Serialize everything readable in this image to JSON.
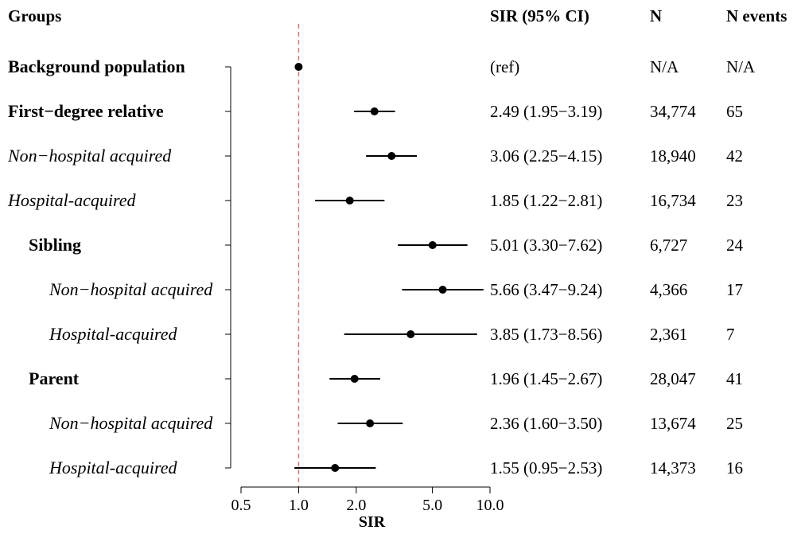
{
  "chart_data": {
    "type": "forest",
    "headers": {
      "groups": "Groups",
      "sir": "SIR (95% CI)",
      "n": "N",
      "events": "N events"
    },
    "xlabel": "SIR",
    "x_scale": "log",
    "xlim": [
      0.5,
      10.0
    ],
    "x_ticks": [
      0.5,
      1.0,
      2.0,
      5.0,
      10.0
    ],
    "x_tick_labels": [
      "0.5",
      "1.0",
      "2.0",
      "5.0",
      "10.0"
    ],
    "reference_line": {
      "value": 1.0,
      "color": "#e07070",
      "style": "dashed"
    },
    "rows": [
      {
        "label": "Background population",
        "style": "bold",
        "level": 0,
        "est": 1.0,
        "lo": null,
        "hi": null,
        "sir_text": "(ref)",
        "n": "N/A",
        "events": "N/A"
      },
      {
        "label": "First−degree relative",
        "style": "bold",
        "level": 0,
        "est": 2.49,
        "lo": 1.95,
        "hi": 3.19,
        "sir_text": "2.49 (1.95−3.19)",
        "n": "34,774",
        "events": "65"
      },
      {
        "label": "Non−hospital acquired",
        "style": "italic",
        "level": 0,
        "est": 3.06,
        "lo": 2.25,
        "hi": 4.15,
        "sir_text": "3.06 (2.25−4.15)",
        "n": "18,940",
        "events": "42"
      },
      {
        "label": "Hospital-acquired",
        "style": "italic",
        "level": 0,
        "est": 1.85,
        "lo": 1.22,
        "hi": 2.81,
        "sir_text": "1.85 (1.22−2.81)",
        "n": "16,734",
        "events": "23"
      },
      {
        "label": "Sibling",
        "style": "bold",
        "level": 1,
        "est": 5.01,
        "lo": 3.3,
        "hi": 7.62,
        "sir_text": "5.01 (3.30−7.62)",
        "n": "6,727",
        "events": "24"
      },
      {
        "label": "Non−hospital acquired",
        "style": "italic",
        "level": 2,
        "est": 5.66,
        "lo": 3.47,
        "hi": 9.24,
        "sir_text": "5.66 (3.47−9.24)",
        "n": "4,366",
        "events": "17"
      },
      {
        "label": "Hospital-acquired",
        "style": "italic",
        "level": 2,
        "est": 3.85,
        "lo": 1.73,
        "hi": 8.56,
        "sir_text": "3.85 (1.73−8.56)",
        "n": "2,361",
        "events": "7"
      },
      {
        "label": "Parent",
        "style": "bold",
        "level": 1,
        "est": 1.96,
        "lo": 1.45,
        "hi": 2.67,
        "sir_text": "1.96 (1.45−2.67)",
        "n": "28,047",
        "events": "41"
      },
      {
        "label": "Non−hospital acquired",
        "style": "italic",
        "level": 2,
        "est": 2.36,
        "lo": 1.6,
        "hi": 3.5,
        "sir_text": "2.36 (1.60−3.50)",
        "n": "13,674",
        "events": "25"
      },
      {
        "label": "Hospital-acquired",
        "style": "italic",
        "level": 2,
        "est": 1.55,
        "lo": 0.95,
        "hi": 2.53,
        "sir_text": "1.55 (0.95−2.53)",
        "n": "14,373",
        "events": "16"
      }
    ]
  }
}
